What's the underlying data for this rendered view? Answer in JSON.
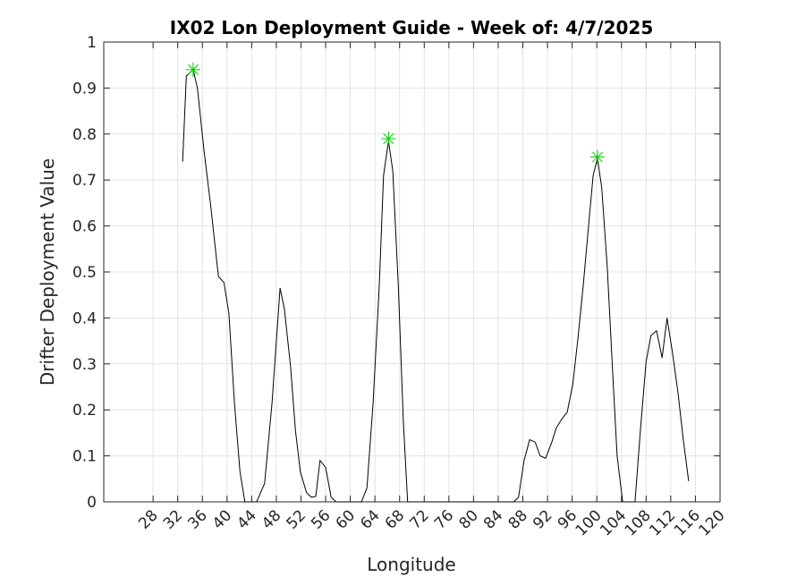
{
  "chart_data": {
    "type": "line",
    "title": "IX02 Lon Deployment Guide - Week of: 4/7/2025",
    "x_label": "Longitude",
    "y_label": "Drifter Deployment Value",
    "xlim": [
      20,
      120
    ],
    "ylim": [
      0,
      1
    ],
    "xticks": [
      28,
      32,
      36,
      40,
      44,
      48,
      52,
      56,
      60,
      64,
      68,
      72,
      76,
      80,
      84,
      88,
      92,
      96,
      100,
      104,
      108,
      112,
      116,
      120
    ],
    "yticks": [
      0,
      0.1,
      0.2,
      0.3,
      0.4,
      0.5,
      0.6,
      0.7,
      0.8,
      0.9,
      1
    ],
    "grid": true,
    "series": [
      {
        "color": "#000000",
        "marker": "none",
        "x": [
          32.8,
          33.4,
          34.5,
          35.2,
          36.3,
          37.3,
          38.6,
          39.5,
          40.3,
          41.2,
          42.1,
          42.9,
          44.8,
          46.1,
          47.3,
          48.6,
          49.3,
          50.3,
          51.1,
          51.9,
          52.9,
          53.7,
          54.4,
          55.1,
          56.0,
          56.9,
          57.7,
          61.8,
          62.7,
          63.7,
          64.7,
          65.4,
          66.2,
          66.9,
          67.8,
          68.6,
          69.3,
          86.5,
          87.3,
          88.2,
          89.1,
          90.0,
          90.8,
          91.7,
          92.7,
          93.4,
          94.3,
          95.2,
          96.1,
          96.9,
          97.8,
          98.7,
          99.4,
          100.1,
          100.8,
          101.7,
          102.6,
          103.3,
          104.2,
          106.2,
          107.1,
          108.0,
          108.8,
          109.7,
          110.6,
          111.4,
          112.3,
          113.2,
          114.0,
          114.9
        ],
        "values": [
          0.74,
          0.926,
          0.94,
          0.9,
          0.76,
          0.65,
          0.49,
          0.477,
          0.41,
          0.215,
          0.065,
          0,
          0,
          0.04,
          0.215,
          0.465,
          0.42,
          0.295,
          0.155,
          0.065,
          0.02,
          0.01,
          0.012,
          0.09,
          0.075,
          0.01,
          0,
          0,
          0.03,
          0.215,
          0.47,
          0.71,
          0.785,
          0.72,
          0.47,
          0.175,
          0,
          0,
          0.01,
          0.09,
          0.135,
          0.13,
          0.1,
          0.095,
          0.13,
          0.16,
          0.18,
          0.195,
          0.255,
          0.35,
          0.47,
          0.605,
          0.71,
          0.747,
          0.683,
          0.51,
          0.275,
          0.1,
          0,
          0,
          0.16,
          0.305,
          0.362,
          0.372,
          0.313,
          0.4,
          0.323,
          0.235,
          0.138,
          0.045
        ]
      },
      {
        "color": "#00cc00",
        "marker": "star",
        "line": false,
        "x": [
          34.5,
          66.2,
          100.1
        ],
        "values": [
          0.94,
          0.79,
          0.75
        ]
      }
    ]
  }
}
